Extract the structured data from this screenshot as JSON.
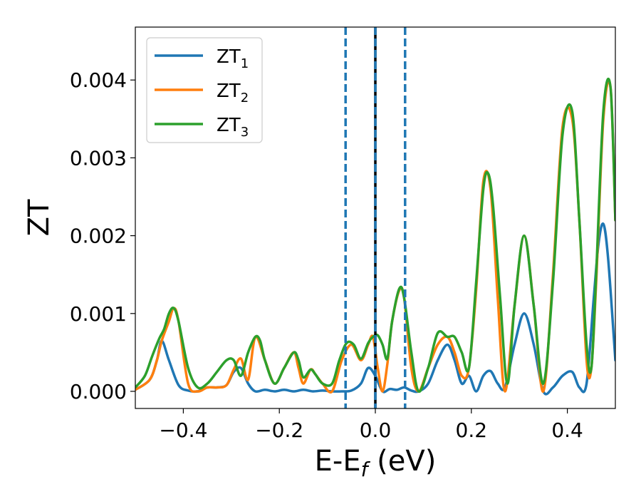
{
  "chart_data": {
    "type": "line",
    "xlabel": {
      "main": "E-E",
      "sub": "f",
      "suffix": " (eV)"
    },
    "ylabel": "ZT",
    "xlim": [
      -0.5,
      0.5
    ],
    "ylim": [
      -0.00022,
      0.00468
    ],
    "xticks": [
      -0.4,
      -0.2,
      0.0,
      0.2,
      0.4
    ],
    "xtick_labels": [
      "−0.4",
      "−0.2",
      "0.0",
      "0.2",
      "0.4"
    ],
    "yticks": [
      0.0,
      0.001,
      0.002,
      0.003,
      0.004
    ],
    "ytick_labels": [
      "0.000",
      "0.001",
      "0.002",
      "0.003",
      "0.004"
    ],
    "legend_position": "top-left",
    "vlines": [
      {
        "x": -0.062,
        "style": "dashed",
        "color": "#1f77b4"
      },
      {
        "x": 0.0,
        "style": "solid",
        "color": "#000000"
      },
      {
        "x": 0.0,
        "style": "dashed",
        "color": "#1f77b4"
      },
      {
        "x": 0.062,
        "style": "dashed",
        "color": "#1f77b4"
      }
    ],
    "series": [
      {
        "name": "ZT",
        "sub": "1",
        "color": "#1f77b4",
        "x": [
          -0.5,
          -0.47,
          -0.455,
          -0.445,
          -0.43,
          -0.41,
          -0.39,
          -0.37,
          -0.35,
          -0.33,
          -0.31,
          -0.295,
          -0.28,
          -0.265,
          -0.25,
          -0.23,
          -0.21,
          -0.19,
          -0.17,
          -0.15,
          -0.13,
          -0.11,
          -0.09,
          -0.07,
          -0.05,
          -0.03,
          -0.015,
          0.0,
          0.015,
          0.03,
          0.045,
          0.06,
          0.075,
          0.09,
          0.11,
          0.13,
          0.15,
          0.165,
          0.18,
          0.195,
          0.21,
          0.225,
          0.24,
          0.255,
          0.27,
          0.29,
          0.31,
          0.33,
          0.35,
          0.37,
          0.39,
          0.41,
          0.425,
          0.44,
          0.455,
          0.465,
          0.475,
          0.485,
          0.5
        ],
        "y": [
          2e-05,
          0.00015,
          0.0004,
          0.00065,
          0.0004,
          8e-05,
          1e-05,
          0.0,
          5e-05,
          5e-05,
          8e-05,
          0.00025,
          0.0003,
          0.0001,
          0.0,
          2e-05,
          0.0,
          2e-05,
          0.0,
          2e-05,
          0.0,
          1e-05,
          0.0,
          0.0,
          1e-05,
          0.0001,
          0.0003,
          0.0002,
          0.0,
          3e-05,
          2e-05,
          5e-05,
          1e-05,
          0.0,
          0.0001,
          0.0004,
          0.0006,
          0.0004,
          0.0001,
          0.0002,
          0.0,
          0.0002,
          0.00026,
          0.0001,
          5e-05,
          0.0006,
          0.001,
          0.0006,
          0.0,
          5e-05,
          0.0002,
          0.00025,
          5e-05,
          0.0001,
          0.0012,
          0.0019,
          0.00215,
          0.0017,
          0.0004
        ]
      },
      {
        "name": "ZT",
        "sub": "2",
        "color": "#ff7f0e",
        "x": [
          -0.5,
          -0.47,
          -0.455,
          -0.445,
          -0.43,
          -0.42,
          -0.41,
          -0.39,
          -0.37,
          -0.35,
          -0.33,
          -0.31,
          -0.295,
          -0.28,
          -0.265,
          -0.25,
          -0.23,
          -0.21,
          -0.19,
          -0.17,
          -0.16,
          -0.15,
          -0.135,
          -0.125,
          -0.11,
          -0.09,
          -0.07,
          -0.05,
          -0.03,
          -0.015,
          -0.005,
          0.005,
          0.015,
          0.025,
          0.035,
          0.05,
          0.06,
          0.075,
          0.09,
          0.11,
          0.13,
          0.15,
          0.165,
          0.18,
          0.195,
          0.21,
          0.225,
          0.24,
          0.255,
          0.27,
          0.29,
          0.31,
          0.33,
          0.35,
          0.37,
          0.39,
          0.41,
          0.425,
          0.44,
          0.45,
          0.46,
          0.475,
          0.49,
          0.5
        ],
        "y": [
          2e-05,
          0.00015,
          0.0004,
          0.00065,
          0.0009,
          0.00107,
          0.0009,
          0.0001,
          0.0,
          5e-05,
          5e-05,
          8e-05,
          0.00028,
          0.00042,
          0.00015,
          0.0007,
          0.0004,
          0.0001,
          0.0003,
          0.0005,
          0.0003,
          0.0001,
          0.00028,
          0.00022,
          0.0001,
          0.0,
          0.0004,
          0.0006,
          0.0004,
          0.0006,
          0.0007,
          0.0003,
          0.0,
          0.00035,
          0.0009,
          0.0013,
          0.0012,
          0.0003,
          0.0,
          0.0003,
          0.0006,
          0.0007,
          0.0005,
          0.0002,
          0.0003,
          0.0013,
          0.0027,
          0.0026,
          0.0012,
          0.0,
          0.0011,
          0.002,
          0.0011,
          0.0,
          0.0015,
          0.0034,
          0.0035,
          0.0022,
          0.0004,
          0.0003,
          0.0014,
          0.0035,
          0.0039,
          0.0022
        ]
      },
      {
        "name": "ZT",
        "sub": "3",
        "color": "#2ca02c",
        "x": [
          -0.5,
          -0.48,
          -0.465,
          -0.45,
          -0.44,
          -0.43,
          -0.42,
          -0.41,
          -0.39,
          -0.37,
          -0.35,
          -0.33,
          -0.31,
          -0.295,
          -0.28,
          -0.265,
          -0.25,
          -0.24,
          -0.23,
          -0.21,
          -0.19,
          -0.17,
          -0.16,
          -0.15,
          -0.135,
          -0.125,
          -0.11,
          -0.09,
          -0.075,
          -0.06,
          -0.045,
          -0.03,
          -0.015,
          -0.005,
          0.005,
          0.015,
          0.025,
          0.035,
          0.05,
          0.06,
          0.075,
          0.09,
          0.11,
          0.13,
          0.15,
          0.165,
          0.18,
          0.195,
          0.21,
          0.225,
          0.235,
          0.245,
          0.26,
          0.275,
          0.29,
          0.31,
          0.33,
          0.35,
          0.37,
          0.39,
          0.41,
          0.425,
          0.44,
          0.45,
          0.46,
          0.475,
          0.49,
          0.5
        ],
        "y": [
          5e-05,
          0.0002,
          0.00045,
          0.00068,
          0.0008,
          0.001,
          0.00107,
          0.0009,
          0.0003,
          5e-05,
          0.0001,
          0.00025,
          0.0004,
          0.0004,
          0.0002,
          0.0005,
          0.0007,
          0.00065,
          0.0004,
          0.0001,
          0.0003,
          0.0005,
          0.0004,
          0.00018,
          0.00028,
          0.00022,
          0.0001,
          0.0001,
          0.0004,
          0.00062,
          0.0006,
          0.00042,
          0.00062,
          0.0007,
          0.00072,
          0.0006,
          0.00042,
          0.0009,
          0.00132,
          0.0012,
          0.0005,
          0.0,
          0.0003,
          0.00075,
          0.0007,
          0.0007,
          0.0005,
          0.0003,
          0.0014,
          0.0026,
          0.0028,
          0.0024,
          0.0012,
          0.0001,
          0.0011,
          0.002,
          0.0011,
          0.0001,
          0.0014,
          0.0033,
          0.0036,
          0.0022,
          0.0006,
          0.0003,
          0.0015,
          0.0036,
          0.0039,
          0.0022
        ]
      }
    ]
  }
}
